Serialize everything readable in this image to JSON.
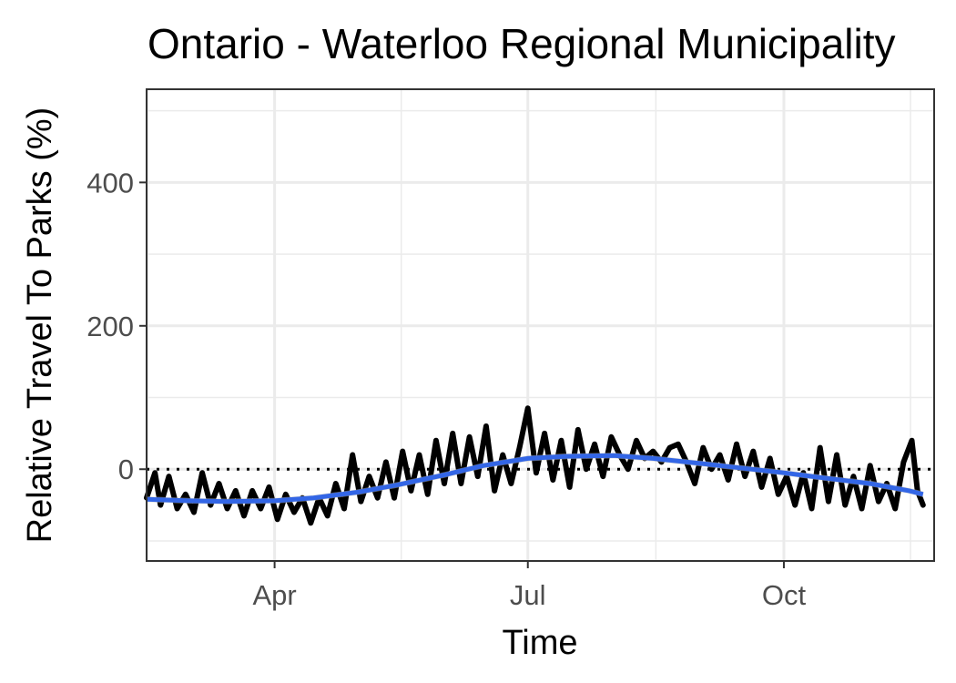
{
  "chart_data": {
    "type": "line",
    "title": "Ontario - Waterloo Regional Municipality",
    "xlabel": "Time",
    "ylabel": "Relative Travel To Parks (%)",
    "x_ticks": [
      {
        "label": "Apr",
        "date": "2020-04-01"
      },
      {
        "label": "Jul",
        "date": "2020-07-01"
      },
      {
        "label": "Oct",
        "date": "2020-10-01"
      }
    ],
    "y_ticks": [
      0,
      200,
      400
    ],
    "xlim": [
      "2020-02-15",
      "2020-11-24"
    ],
    "ylim": [
      -128,
      530
    ],
    "reference_line": {
      "y": 0,
      "style": "dotted"
    },
    "grid": true,
    "colors": {
      "series": "#000000",
      "smooth": "#3366e6",
      "band": "#bdbdbd"
    },
    "series": [
      {
        "kind": "daily",
        "x": [
          "2020-02-15",
          "2020-02-18",
          "2020-02-20",
          "2020-02-23",
          "2020-02-26",
          "2020-02-29",
          "2020-03-03",
          "2020-03-06",
          "2020-03-09",
          "2020-03-12",
          "2020-03-15",
          "2020-03-18",
          "2020-03-21",
          "2020-03-24",
          "2020-03-27",
          "2020-03-30",
          "2020-04-02",
          "2020-04-05",
          "2020-04-08",
          "2020-04-11",
          "2020-04-14",
          "2020-04-17",
          "2020-04-20",
          "2020-04-23",
          "2020-04-26",
          "2020-04-29",
          "2020-05-02",
          "2020-05-05",
          "2020-05-08",
          "2020-05-11",
          "2020-05-14",
          "2020-05-17",
          "2020-05-20",
          "2020-05-23",
          "2020-05-26",
          "2020-05-29",
          "2020-06-01",
          "2020-06-04",
          "2020-06-07",
          "2020-06-10",
          "2020-06-13",
          "2020-06-16",
          "2020-06-19",
          "2020-06-22",
          "2020-06-25",
          "2020-06-28",
          "2020-07-01",
          "2020-07-04",
          "2020-07-07",
          "2020-07-10",
          "2020-07-13",
          "2020-07-16",
          "2020-07-19",
          "2020-07-22",
          "2020-07-25",
          "2020-07-28",
          "2020-07-31",
          "2020-08-03",
          "2020-08-06",
          "2020-08-09",
          "2020-08-12",
          "2020-08-15",
          "2020-08-18",
          "2020-08-21",
          "2020-08-24",
          "2020-08-27",
          "2020-08-30",
          "2020-09-02",
          "2020-09-05",
          "2020-09-08",
          "2020-09-11",
          "2020-09-14",
          "2020-09-17",
          "2020-09-20",
          "2020-09-23",
          "2020-09-26",
          "2020-09-29",
          "2020-10-02",
          "2020-10-05",
          "2020-10-08",
          "2020-10-11",
          "2020-10-14",
          "2020-10-17",
          "2020-10-20",
          "2020-10-23",
          "2020-10-26",
          "2020-10-29",
          "2020-11-01",
          "2020-11-04",
          "2020-11-07",
          "2020-11-10",
          "2020-11-13",
          "2020-11-16",
          "2020-11-18",
          "2020-11-20"
        ],
        "y": [
          -40,
          -5,
          -50,
          -10,
          -55,
          -35,
          -60,
          -5,
          -50,
          -20,
          -55,
          -30,
          -65,
          -30,
          -55,
          -25,
          -70,
          -35,
          -60,
          -40,
          -75,
          -40,
          -65,
          -20,
          -55,
          20,
          -45,
          -10,
          -40,
          10,
          -40,
          25,
          -30,
          20,
          -35,
          40,
          -20,
          50,
          -20,
          45,
          -10,
          60,
          -30,
          20,
          -20,
          30,
          85,
          -5,
          50,
          -15,
          40,
          -25,
          55,
          0,
          35,
          -10,
          45,
          20,
          0,
          40,
          15,
          25,
          10,
          30,
          35,
          10,
          -20,
          30,
          0,
          20,
          -15,
          35,
          -10,
          25,
          -25,
          15,
          -35,
          -10,
          -50,
          -5,
          -55,
          30,
          -45,
          20,
          -50,
          -10,
          -55,
          5,
          -45,
          -20,
          -55,
          10,
          40,
          -30,
          -50
        ]
      },
      {
        "kind": "smooth",
        "x": [
          "2020-02-15",
          "2020-03-01",
          "2020-03-15",
          "2020-04-01",
          "2020-04-15",
          "2020-05-01",
          "2020-05-15",
          "2020-06-01",
          "2020-06-15",
          "2020-07-01",
          "2020-07-15",
          "2020-08-01",
          "2020-08-15",
          "2020-09-01",
          "2020-09-15",
          "2020-10-01",
          "2020-10-15",
          "2020-11-01",
          "2020-11-15",
          "2020-11-20"
        ],
        "y": [
          -42,
          -44,
          -45,
          -44,
          -40,
          -32,
          -22,
          -8,
          5,
          15,
          18,
          19,
          15,
          8,
          2,
          -5,
          -12,
          -20,
          -30,
          -35
        ]
      }
    ]
  }
}
